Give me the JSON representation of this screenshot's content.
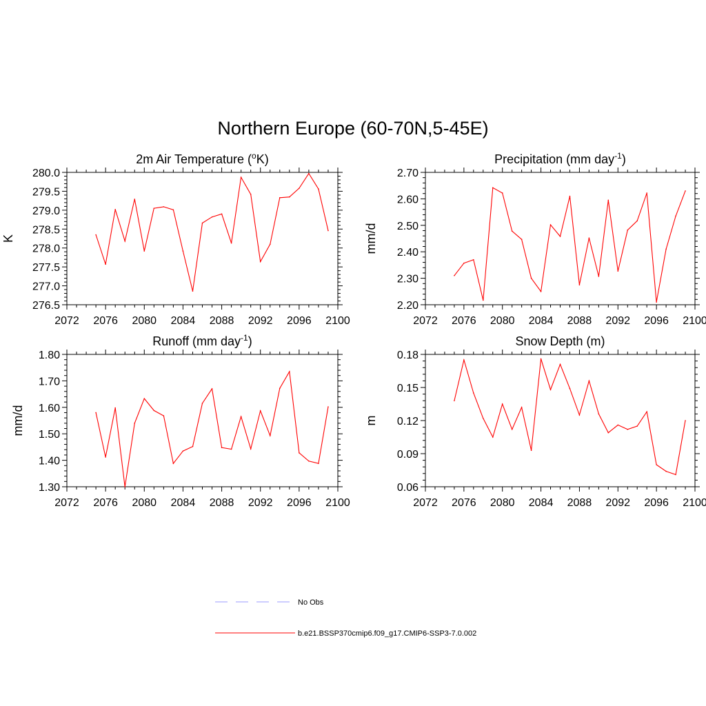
{
  "figure": {
    "title": "Northern Europe (60-70N,5-45E)"
  },
  "legend": {
    "entries": [
      {
        "label": "No Obs",
        "color": "#9999ff",
        "dashed": true
      },
      {
        "label": "b.e21.BSSP370cmip6.f09_g17.CMIP6-SSP3-7.0.002",
        "color": "#ff0000",
        "dashed": false
      }
    ]
  },
  "chart_data": [
    {
      "type": "line",
      "title": "2m Air Temperature (",
      "title_sup": "o",
      "title_after": "K)",
      "ylabel": "K",
      "xlim": [
        2072,
        2100
      ],
      "ylim": [
        276.5,
        280.0
      ],
      "xticks": [
        2072,
        2076,
        2080,
        2084,
        2088,
        2092,
        2096,
        2100
      ],
      "yticks": [
        "276.5",
        "277.0",
        "277.5",
        "278.0",
        "278.5",
        "279.0",
        "279.5",
        "280.0"
      ],
      "color": "#ff0000",
      "x": [
        2075,
        2076,
        2077,
        2078,
        2079,
        2080,
        2081,
        2082,
        2083,
        2084,
        2085,
        2086,
        2087,
        2088,
        2089,
        2090,
        2091,
        2092,
        2093,
        2094,
        2095,
        2096,
        2097,
        2098,
        2099
      ],
      "y": [
        278.35,
        277.57,
        279.02,
        278.18,
        279.29,
        277.92,
        279.05,
        279.09,
        279.01,
        277.92,
        276.86,
        278.66,
        278.82,
        278.9,
        278.13,
        279.87,
        279.42,
        277.64,
        278.1,
        279.33,
        279.35,
        279.58,
        279.97,
        279.56,
        278.46
      ]
    },
    {
      "type": "line",
      "title": "Precipitation (mm day",
      "title_sup": "-1",
      "title_after": ")",
      "ylabel": "mm/d",
      "xlim": [
        2072,
        2100
      ],
      "ylim": [
        2.2,
        2.7
      ],
      "xticks": [
        2072,
        2076,
        2080,
        2084,
        2088,
        2092,
        2096,
        2100
      ],
      "yticks": [
        "2.20",
        "2.30",
        "2.40",
        "2.50",
        "2.60",
        "2.70"
      ],
      "color": "#ff0000",
      "x": [
        2075,
        2076,
        2077,
        2078,
        2079,
        2080,
        2081,
        2082,
        2083,
        2084,
        2085,
        2086,
        2087,
        2088,
        2089,
        2090,
        2091,
        2092,
        2093,
        2094,
        2095,
        2096,
        2097,
        2098,
        2099
      ],
      "y": [
        2.31,
        2.357,
        2.37,
        2.217,
        2.642,
        2.622,
        2.478,
        2.447,
        2.3,
        2.25,
        2.502,
        2.458,
        2.61,
        2.275,
        2.452,
        2.307,
        2.595,
        2.327,
        2.482,
        2.517,
        2.622,
        2.21,
        2.41,
        2.535,
        2.63
      ]
    },
    {
      "type": "line",
      "title": "Runoff (mm day",
      "title_sup": "-1",
      "title_after": ")",
      "ylabel": "mm/d",
      "xlim": [
        2072,
        2100
      ],
      "ylim": [
        1.3,
        1.8
      ],
      "xticks": [
        2072,
        2076,
        2080,
        2084,
        2088,
        2092,
        2096,
        2100
      ],
      "yticks": [
        "1.30",
        "1.40",
        "1.50",
        "1.60",
        "1.70",
        "1.80"
      ],
      "color": "#ff0000",
      "x": [
        2075,
        2076,
        2077,
        2078,
        2079,
        2080,
        2081,
        2082,
        2083,
        2084,
        2085,
        2086,
        2087,
        2088,
        2089,
        2090,
        2091,
        2092,
        2093,
        2094,
        2095,
        2096,
        2097,
        2098,
        2099
      ],
      "y": [
        1.58,
        1.412,
        1.598,
        1.3,
        1.54,
        1.633,
        1.588,
        1.568,
        1.388,
        1.435,
        1.452,
        1.615,
        1.67,
        1.448,
        1.442,
        1.565,
        1.443,
        1.587,
        1.493,
        1.672,
        1.735,
        1.428,
        1.397,
        1.388,
        1.602
      ]
    },
    {
      "type": "line",
      "title": "Snow Depth (m)",
      "title_sup": "",
      "title_after": "",
      "ylabel": "m",
      "xlim": [
        2072,
        2100
      ],
      "ylim": [
        0.06,
        0.18
      ],
      "xticks": [
        2072,
        2076,
        2080,
        2084,
        2088,
        2092,
        2096,
        2100
      ],
      "yticks": [
        "0.06",
        "0.09",
        "0.12",
        "0.15",
        "0.18"
      ],
      "color": "#ff0000",
      "x": [
        2075,
        2076,
        2077,
        2078,
        2079,
        2080,
        2081,
        2082,
        2083,
        2084,
        2085,
        2086,
        2087,
        2088,
        2089,
        2090,
        2091,
        2092,
        2093,
        2094,
        2095,
        2096,
        2097,
        2098,
        2099
      ],
      "y": [
        0.138,
        0.175,
        0.145,
        0.122,
        0.105,
        0.135,
        0.112,
        0.132,
        0.093,
        0.176,
        0.148,
        0.171,
        0.149,
        0.125,
        0.156,
        0.126,
        0.109,
        0.116,
        0.112,
        0.115,
        0.128,
        0.08,
        0.074,
        0.071,
        0.12
      ]
    }
  ]
}
